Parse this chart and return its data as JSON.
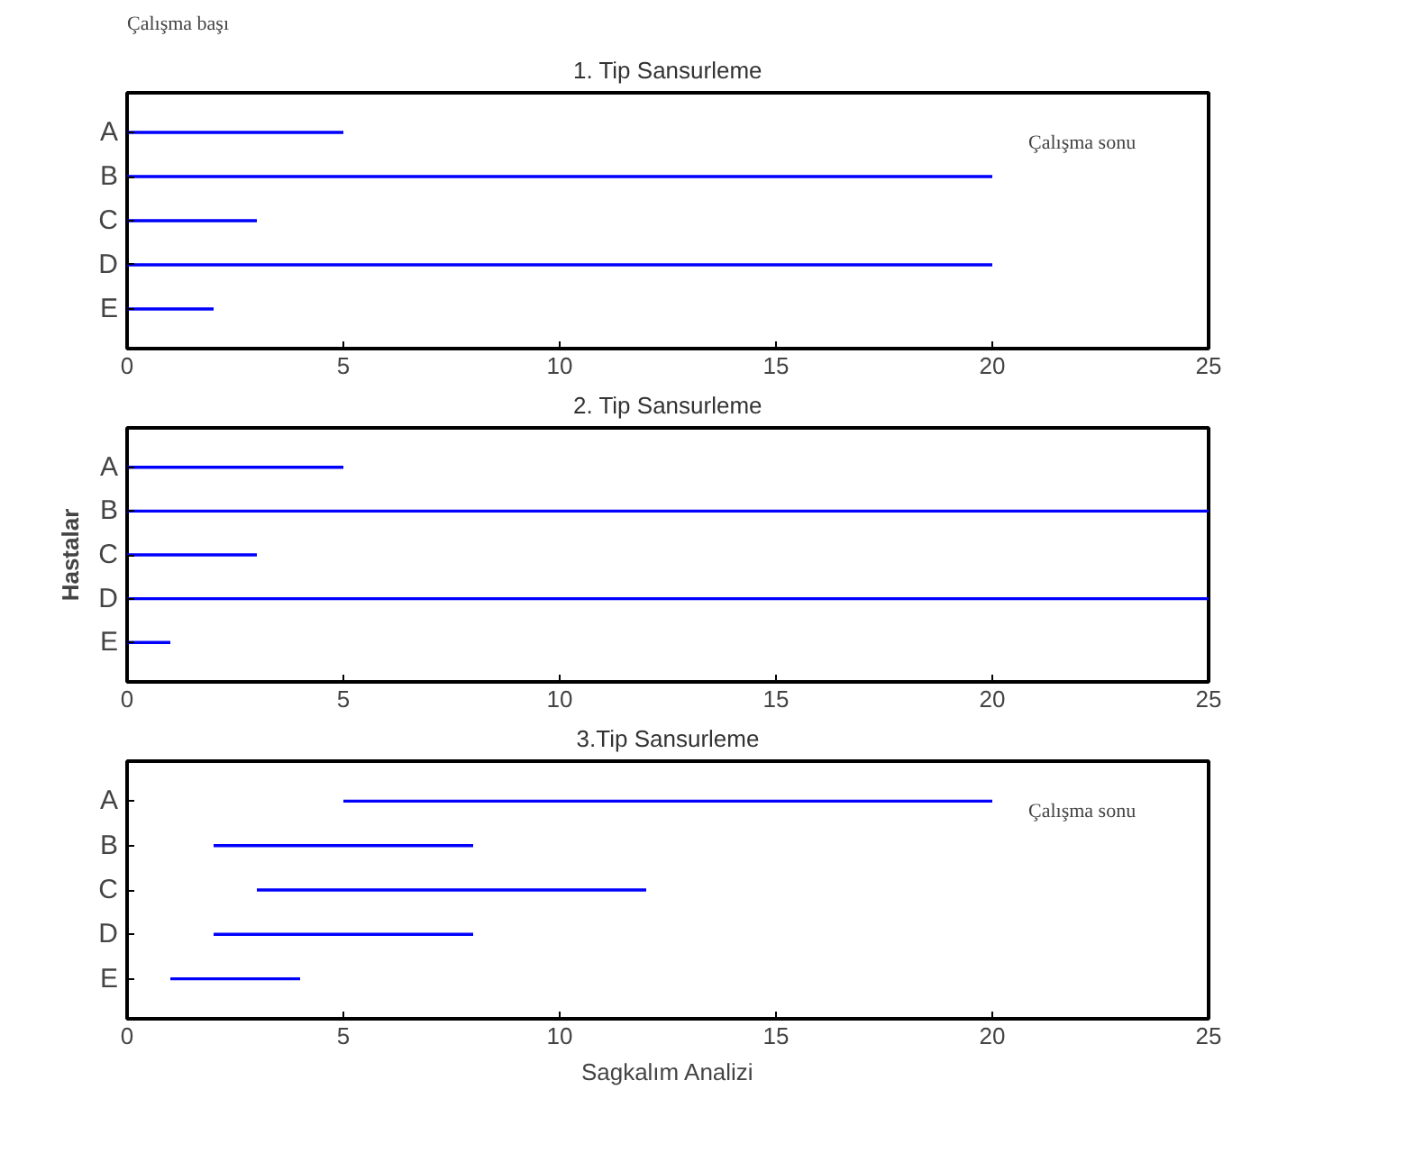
{
  "chart_data": [
    {
      "type": "bar",
      "orientation": "horizontal",
      "title": "1. Tip Sansurleme",
      "categories": [
        "A",
        "B",
        "C",
        "D",
        "E"
      ],
      "base": [
        0,
        0,
        0,
        0,
        0
      ],
      "values": [
        5,
        20,
        3,
        20,
        2
      ],
      "color": "#0000ff",
      "xlim": [
        0,
        25
      ],
      "xticks": [
        0,
        5,
        10,
        15,
        20,
        25
      ],
      "grid": false,
      "annotations": [
        "Çalışma başı",
        "Çalışma sonu"
      ]
    },
    {
      "type": "bar",
      "orientation": "horizontal",
      "title": "2. Tip Sansurleme",
      "ylabel": "Hastalar",
      "categories": [
        "A",
        "B",
        "C",
        "D",
        "E"
      ],
      "base": [
        0,
        0,
        0,
        0,
        0
      ],
      "values": [
        5,
        25,
        3,
        25,
        1
      ],
      "color": "#0000ff",
      "xlim": [
        0,
        25
      ],
      "xticks": [
        0,
        5,
        10,
        15,
        20,
        25
      ],
      "grid": false
    },
    {
      "type": "bar",
      "orientation": "horizontal",
      "title": "3.Tip Sansurleme",
      "xlabel": "Sagkalım Analizi",
      "categories": [
        "A",
        "B",
        "C",
        "D",
        "E"
      ],
      "base": [
        5,
        2,
        3,
        2,
        1
      ],
      "values": [
        15,
        6,
        9,
        6,
        3
      ],
      "color": "#0000ff",
      "xlim": [
        0,
        25
      ],
      "xticks": [
        0,
        5,
        10,
        15,
        20,
        25
      ],
      "grid": false,
      "annotations": [
        "Çalışma sonu"
      ]
    }
  ]
}
